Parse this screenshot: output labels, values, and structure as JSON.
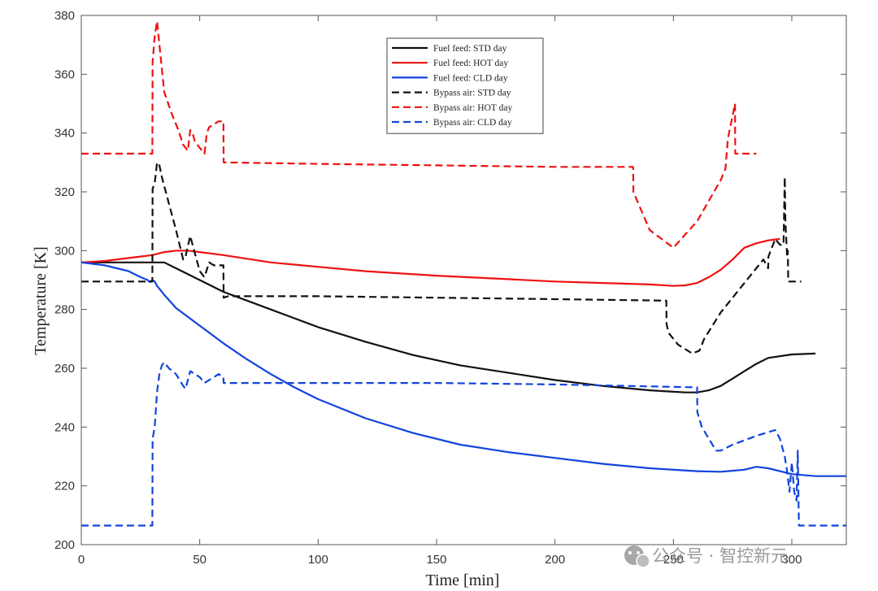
{
  "chart_data": {
    "type": "line",
    "title": "",
    "xlabel": "Time [min]",
    "ylabel": "Temperature [K]",
    "xlim": [
      0,
      323
    ],
    "ylim": [
      200,
      380
    ],
    "xticks": [
      0,
      50,
      100,
      150,
      200,
      250,
      300
    ],
    "yticks": [
      200,
      220,
      240,
      260,
      280,
      300,
      320,
      340,
      360,
      380
    ],
    "grid": false,
    "legend_position": "top-center",
    "series": [
      {
        "name": "Fuel feed: STD day",
        "color": "#111111",
        "dash": "solid",
        "x": [
          0,
          10,
          20,
          30,
          35,
          40,
          50,
          60,
          70,
          80,
          90,
          100,
          120,
          140,
          160,
          180,
          200,
          220,
          240,
          250,
          255,
          260,
          265,
          270,
          275,
          280,
          285,
          290,
          300,
          310
        ],
        "y": [
          296,
          296,
          296,
          296,
          296,
          294,
          290,
          286,
          283,
          280,
          277,
          274,
          269,
          264.5,
          261,
          258.5,
          256,
          254,
          252.5,
          252,
          251.8,
          251.8,
          252.5,
          254,
          256.5,
          259,
          261.5,
          263.5,
          264.7,
          265
        ]
      },
      {
        "name": "Fuel feed: HOT day",
        "color": "#ee1111",
        "dash": "solid",
        "x": [
          0,
          10,
          20,
          30,
          35,
          40,
          45,
          50,
          60,
          80,
          100,
          120,
          150,
          180,
          200,
          220,
          240,
          250,
          255,
          260,
          265,
          270,
          275,
          280,
          285,
          290,
          295
        ],
        "y": [
          296,
          296.5,
          297.5,
          298.5,
          299.5,
          300,
          300,
          299.5,
          298.5,
          296,
          294.5,
          293,
          291.5,
          290.3,
          289.5,
          289,
          288.5,
          288,
          288.2,
          289,
          291,
          293.5,
          297,
          301,
          302.5,
          303.5,
          304
        ]
      },
      {
        "name": "Fuel feed: CLD day",
        "color": "#1144dd",
        "dash": "solid",
        "x": [
          0,
          5,
          10,
          15,
          20,
          25,
          28,
          29,
          30,
          31,
          32,
          35,
          40,
          50,
          60,
          70,
          80,
          90,
          100,
          120,
          140,
          160,
          180,
          200,
          220,
          240,
          260,
          270,
          280,
          285,
          290,
          300,
          310,
          323
        ],
        "y": [
          296,
          295.5,
          295,
          294,
          293,
          291,
          290,
          289.3,
          290,
          289.5,
          288,
          285,
          280.5,
          274.5,
          268.5,
          263,
          258,
          253.5,
          249.5,
          243,
          238,
          234,
          231.5,
          229.5,
          227.5,
          226,
          225,
          224.8,
          225.5,
          226.5,
          226,
          224,
          223.3,
          223.3
        ]
      },
      {
        "name": "Bypass air: STD day",
        "color": "#111111",
        "dash": "dashed",
        "x": [
          0,
          30,
          30.1,
          31,
          32,
          33,
          34,
          37,
          40,
          43,
          44,
          46,
          48,
          50,
          52,
          54,
          56,
          58,
          60,
          60.1,
          62,
          100,
          150,
          200,
          247,
          247.1,
          248,
          252,
          258,
          261,
          263,
          270,
          280,
          285,
          288,
          290,
          290.1,
          293,
          295,
          296.5,
          297,
          297.3,
          298,
          298.3,
          298.5,
          304
        ],
        "y": [
          289.5,
          289.5,
          321,
          323,
          330,
          329,
          325,
          316,
          307,
          297,
          298,
          305,
          299,
          293,
          291,
          296,
          295,
          295,
          295,
          284,
          284.5,
          284.5,
          284,
          283.5,
          283,
          275,
          272,
          268,
          265,
          266,
          270,
          279,
          289,
          294,
          297,
          294,
          298,
          304,
          302,
          302,
          325,
          310,
          298,
          300,
          289.5,
          289.5
        ]
      },
      {
        "name": "Bypass air: HOT day",
        "color": "#ee1111",
        "dash": "dashed",
        "x": [
          0,
          30,
          30.1,
          31,
          32,
          33,
          35,
          38,
          41,
          43,
          45,
          46,
          47,
          48,
          50,
          52,
          53,
          54,
          56,
          58,
          59,
          60,
          60.1,
          100,
          150,
          200,
          233,
          233.1,
          240,
          250,
          260,
          265,
          270,
          272,
          273,
          274,
          275,
          276,
          276.1,
          278,
          285
        ],
        "y": [
          333,
          333,
          364,
          373,
          378,
          370,
          354,
          347,
          341,
          336,
          334,
          341,
          340,
          337,
          335,
          333,
          340,
          342,
          343,
          344,
          344,
          344,
          330,
          329.5,
          329,
          328.5,
          328.5,
          320,
          307,
          301,
          310,
          317,
          324,
          328,
          338,
          342,
          346,
          350,
          333,
          333,
          333
        ]
      },
      {
        "name": "Bypass air: CLD day",
        "color": "#1144dd",
        "dash": "dashed",
        "x": [
          0,
          30,
          30.1,
          31,
          32,
          33,
          34,
          35,
          37,
          40,
          43,
          44,
          46,
          48,
          50,
          52,
          54,
          56,
          58,
          60,
          60.1,
          100,
          150,
          200,
          260,
          260.1,
          262,
          265,
          268,
          270,
          275,
          285,
          293,
          295,
          297,
          298,
          299,
          300,
          301,
          302,
          302.5,
          303,
          305,
          323
        ],
        "y": [
          206.5,
          206.5,
          236,
          240,
          252,
          258,
          261,
          262,
          260,
          258,
          254,
          253,
          259,
          258,
          257,
          255,
          256,
          257,
          258,
          257,
          255,
          255,
          255,
          254.5,
          253.5,
          245,
          240,
          236,
          232,
          232,
          234,
          237,
          239,
          236,
          230,
          225,
          218,
          228,
          218,
          215,
          232,
          206.5,
          206.5,
          206.5
        ]
      }
    ]
  },
  "watermark": {
    "text": "公众号 · 智控新元",
    "icon": "wechat-icon"
  }
}
